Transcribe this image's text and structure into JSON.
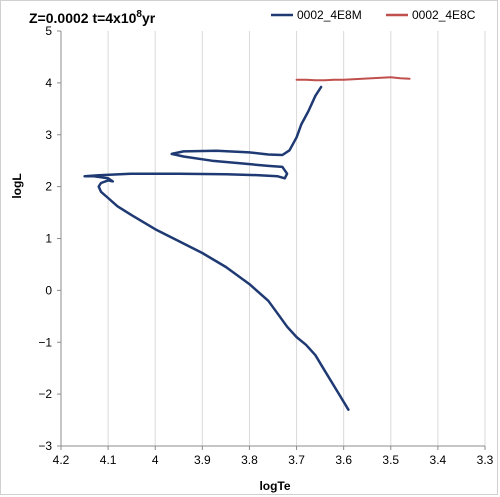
{
  "chart_data": {
    "type": "line",
    "title": {
      "prefix": "Z=0.0002 t=4x10",
      "superscript": "8",
      "suffix": "yr"
    },
    "xlabel": "logTe",
    "ylabel": "logL",
    "xlim": [
      4.2,
      3.3
    ],
    "ylim": [
      -3,
      5
    ],
    "x_reversed": true,
    "x_ticks": [
      4.2,
      4.1,
      4,
      3.9,
      3.8,
      3.7,
      3.6,
      3.5,
      3.4,
      3.3
    ],
    "x_tick_labels": [
      "4.2",
      "4.1",
      "4",
      "3.9",
      "3.8",
      "3.7",
      "3.6",
      "3.5",
      "3.4",
      "3.3"
    ],
    "y_ticks": [
      -3,
      -2,
      -1,
      0,
      1,
      2,
      3,
      4,
      5
    ],
    "y_tick_labels": [
      "-3",
      "-2",
      "-1",
      "0",
      "1",
      "2",
      "3",
      "4",
      "5"
    ],
    "grid": "vertical",
    "legend": "top-right",
    "series": [
      {
        "name": "0002_4E8M",
        "color": "#1f3a73",
        "x": [
          3.59,
          3.61,
          3.64,
          3.66,
          3.68,
          3.7,
          3.72,
          3.74,
          3.76,
          3.8,
          3.85,
          3.9,
          3.95,
          4.0,
          4.05,
          4.08,
          4.1,
          4.115,
          4.12,
          4.115,
          4.1,
          4.09,
          4.1,
          4.13,
          4.15,
          4.12,
          4.05,
          3.95,
          3.85,
          3.78,
          3.74,
          3.725,
          3.72,
          3.73,
          3.76,
          3.82,
          3.88,
          3.94,
          3.965,
          3.94,
          3.87,
          3.8,
          3.76,
          3.73,
          3.715,
          3.7,
          3.69,
          3.675,
          3.66,
          3.648
        ],
        "y": [
          -2.3,
          -2.0,
          -1.55,
          -1.25,
          -1.05,
          -0.9,
          -0.7,
          -0.45,
          -0.2,
          0.12,
          0.45,
          0.72,
          0.95,
          1.18,
          1.45,
          1.62,
          1.78,
          1.9,
          2.0,
          2.07,
          2.12,
          2.1,
          2.16,
          2.2,
          2.2,
          2.22,
          2.25,
          2.25,
          2.24,
          2.22,
          2.2,
          2.16,
          2.25,
          2.38,
          2.4,
          2.45,
          2.5,
          2.58,
          2.63,
          2.68,
          2.69,
          2.66,
          2.62,
          2.61,
          2.7,
          2.95,
          3.2,
          3.45,
          3.75,
          3.92
        ]
      },
      {
        "name": "0002_4E8C",
        "color": "#c0504d",
        "x": [
          3.7,
          3.68,
          3.66,
          3.64,
          3.62,
          3.6,
          3.58,
          3.56,
          3.54,
          3.52,
          3.5,
          3.48,
          3.46
        ],
        "y": [
          4.06,
          4.06,
          4.05,
          4.05,
          4.06,
          4.06,
          4.07,
          4.08,
          4.09,
          4.1,
          4.11,
          4.09,
          4.08
        ]
      }
    ]
  }
}
